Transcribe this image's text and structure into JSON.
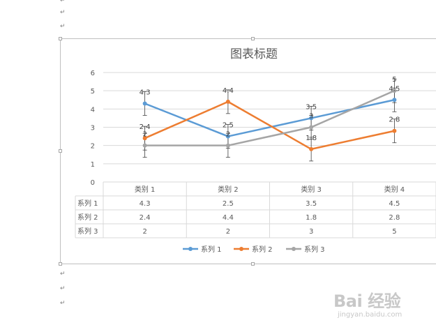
{
  "document": {
    "paragraph_mark": "↵"
  },
  "chart_data": {
    "type": "line",
    "title": "图表标题",
    "categories": [
      "类别 1",
      "类别 2",
      "类别 3",
      "类别 4"
    ],
    "ylim": [
      0,
      6
    ],
    "yticks": [
      0,
      1,
      2,
      3,
      4,
      5,
      6
    ],
    "grid": true,
    "legend": "bottom",
    "error_bars": true,
    "series": [
      {
        "name": "系列 1",
        "color": "#5b9bd5",
        "values": [
          4.3,
          2.5,
          3.5,
          4.5
        ]
      },
      {
        "name": "系列 2",
        "color": "#ed7d31",
        "values": [
          2.4,
          4.4,
          1.8,
          2.8
        ]
      },
      {
        "name": "系列 3",
        "color": "#a5a5a5",
        "values": [
          2,
          2,
          3,
          5
        ]
      }
    ],
    "data_table": {
      "rows": [
        {
          "label": "系列 1",
          "cells": [
            "4.3",
            "2.5",
            "3.5",
            "4.5"
          ]
        },
        {
          "label": "系列 2",
          "cells": [
            "2.4",
            "4.4",
            "1.8",
            "2.8"
          ]
        },
        {
          "label": "系列 3",
          "cells": [
            "2",
            "2",
            "3",
            "5"
          ]
        }
      ]
    }
  },
  "watermark": {
    "logo": "Bai 经验",
    "url": "jingyan.baidu.com"
  }
}
